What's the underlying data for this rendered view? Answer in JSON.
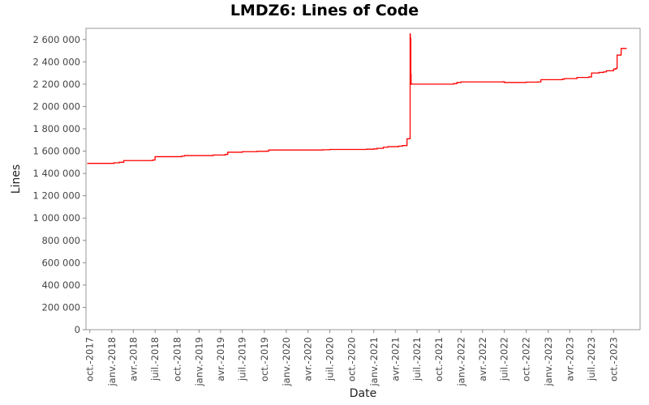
{
  "chart_data": {
    "type": "line",
    "title": "LMDZ6: Lines of Code",
    "xlabel": "Date",
    "ylabel": "Lines",
    "ylim": [
      0,
      2700000
    ],
    "grid": false,
    "legend": "none",
    "line_color": "#ff0000",
    "y_ticks": [
      0,
      200000,
      400000,
      600000,
      800000,
      1000000,
      1200000,
      1400000,
      1600000,
      1800000,
      2000000,
      2200000,
      2400000,
      2600000
    ],
    "y_tick_labels": [
      "0",
      "200 000",
      "400 000",
      "600 000",
      "800 000",
      "1 000 000",
      "1 200 000",
      "1 400 000",
      "1 600 000",
      "1 800 000",
      "2 000 000",
      "2 200 000",
      "2 400 000",
      "2 600 000"
    ],
    "x_ticks": [
      "2017-10-01",
      "2018-01-01",
      "2018-04-01",
      "2018-07-01",
      "2018-10-01",
      "2019-01-01",
      "2019-04-01",
      "2019-07-01",
      "2019-10-01",
      "2020-01-01",
      "2020-04-01",
      "2020-07-01",
      "2020-10-01",
      "2021-01-01",
      "2021-04-01",
      "2021-07-01",
      "2021-10-01",
      "2022-01-01",
      "2022-04-01",
      "2022-07-01",
      "2022-10-01",
      "2023-01-01",
      "2023-04-01",
      "2023-07-01",
      "2023-10-01"
    ],
    "x_tick_labels": [
      "oct.-2017",
      "janv.-2018",
      "avr.-2018",
      "juil.-2018",
      "oct.-2018",
      "janv.-2019",
      "avr.-2019",
      "juil.-2019",
      "oct.-2019",
      "janv.-2020",
      "avr.-2020",
      "juil.-2020",
      "oct.-2020",
      "janv.-2021",
      "avr.-2021",
      "juil.-2021",
      "oct.-2021",
      "janv.-2022",
      "avr.-2022",
      "juil.-2022",
      "oct.-2022",
      "janv.-2023",
      "avr.-2023",
      "juil.-2023",
      "oct.-2023"
    ],
    "xlim": [
      "2017-09-15",
      "2024-01-20"
    ],
    "series": [
      {
        "x": [
          "2017-09-20",
          "2017-12-15",
          "2018-01-10",
          "2018-02-01",
          "2018-02-20",
          "2018-06-20",
          "2018-07-01",
          "2018-10-20",
          "2018-11-01",
          "2019-03-01",
          "2019-04-20",
          "2019-05-01",
          "2019-07-01",
          "2019-09-01",
          "2019-10-10",
          "2019-10-20",
          "2020-06-01",
          "2020-07-01",
          "2020-12-01",
          "2021-01-01",
          "2021-01-15",
          "2021-02-10",
          "2021-03-01",
          "2021-04-15",
          "2021-05-01",
          "2021-05-20",
          "2021-06-01",
          "2021-06-02",
          "2021-06-03",
          "2021-06-05",
          "2021-06-06",
          "2021-06-07",
          "2021-06-08",
          "2021-12-01",
          "2021-12-15",
          "2022-01-01",
          "2022-06-25",
          "2022-07-01",
          "2022-10-01",
          "2022-11-20",
          "2022-12-01",
          "2023-03-01",
          "2023-03-10",
          "2023-05-01",
          "2023-06-20",
          "2023-07-01",
          "2023-08-01",
          "2023-08-20",
          "2023-09-01",
          "2023-10-01",
          "2023-10-10",
          "2023-10-15",
          "2023-10-16",
          "2023-11-01",
          "2023-11-02",
          "2023-11-25"
        ],
        "y": [
          1490000,
          1490000,
          1495000,
          1500000,
          1515000,
          1520000,
          1550000,
          1555000,
          1560000,
          1565000,
          1570000,
          1590000,
          1595000,
          1598000,
          1600000,
          1610000,
          1612000,
          1615000,
          1617000,
          1620000,
          1625000,
          1635000,
          1640000,
          1645000,
          1650000,
          1710000,
          1715000,
          2650000,
          2610000,
          2290000,
          2200000,
          2205000,
          2200000,
          2205000,
          2215000,
          2220000,
          2222000,
          2215000,
          2218000,
          2220000,
          2240000,
          2245000,
          2250000,
          2260000,
          2265000,
          2300000,
          2305000,
          2310000,
          2320000,
          2335000,
          2340000,
          2345000,
          2460000,
          2465000,
          2520000,
          2520000
        ]
      }
    ]
  }
}
